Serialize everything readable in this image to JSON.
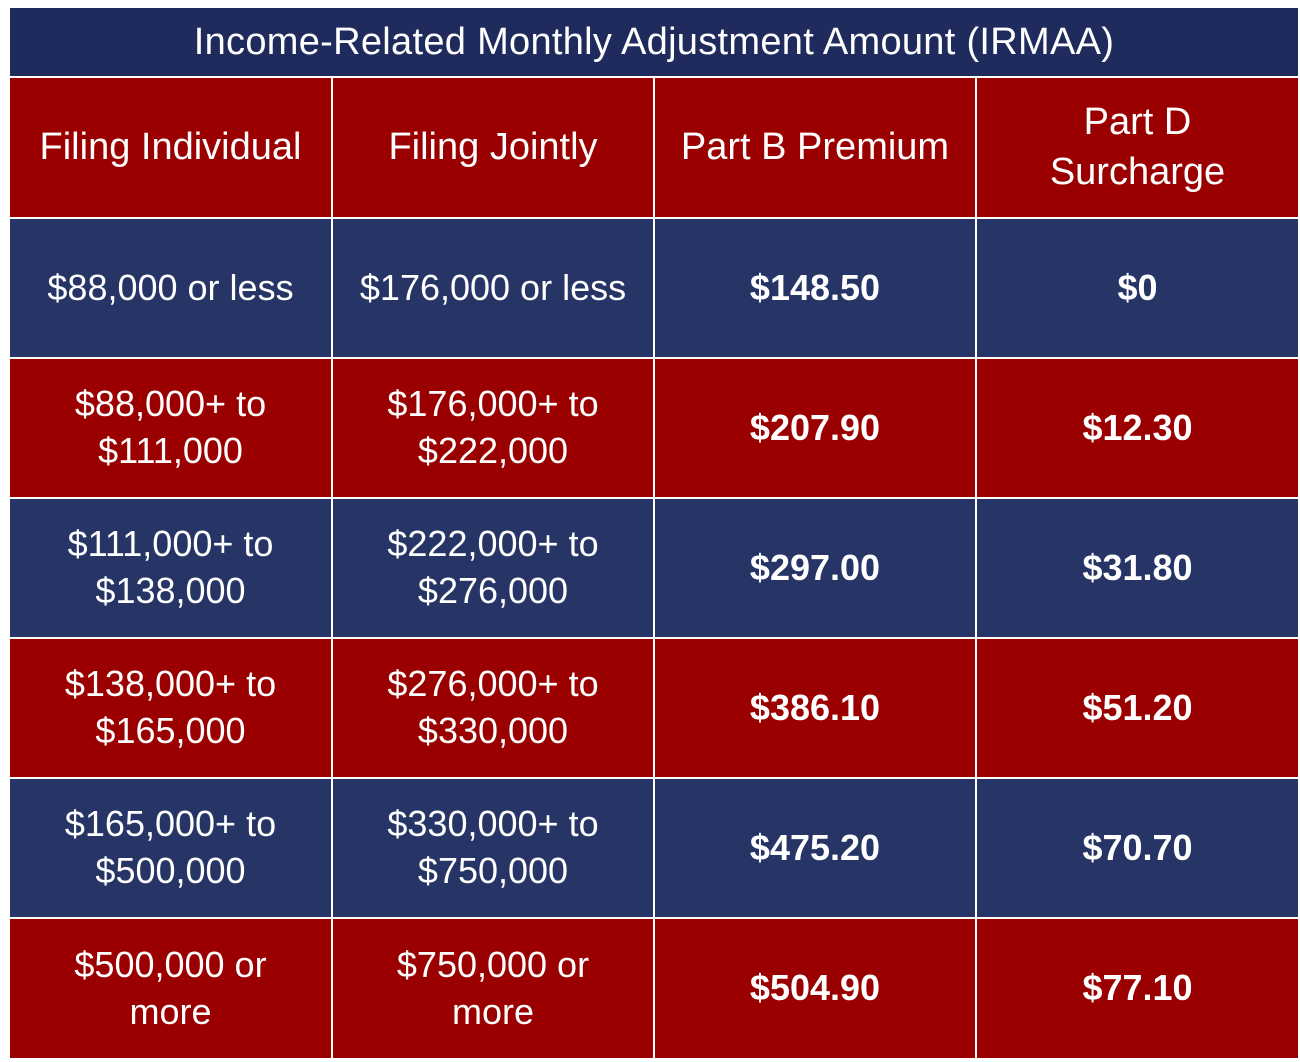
{
  "title": "Income-Related Monthly Adjustment Amount (IRMAA)",
  "headers": {
    "filing_individual": "Filing Individual",
    "filing_jointly": "Filing Jointly",
    "part_b_premium": "Part B Premium",
    "part_d_surcharge_line1": "Part D",
    "part_d_surcharge_line2": "Surcharge"
  },
  "colors": {
    "red": "#9a0000",
    "blue": "#263466",
    "title_bg": "#1f2b5c"
  },
  "rows": [
    {
      "individual_line1": "$88,000 or less",
      "individual_line2": "",
      "jointly_line1": "$176,000 or less",
      "jointly_line2": "",
      "part_b": "$148.50",
      "part_d": "$0"
    },
    {
      "individual_line1": "$88,000+ to",
      "individual_line2": "$111,000",
      "jointly_line1": "$176,000+ to",
      "jointly_line2": "$222,000",
      "part_b": "$207.90",
      "part_d": "$12.30"
    },
    {
      "individual_line1": "$111,000+ to",
      "individual_line2": "$138,000",
      "jointly_line1": "$222,000+ to",
      "jointly_line2": "$276,000",
      "part_b": "$297.00",
      "part_d": "$31.80"
    },
    {
      "individual_line1": "$138,000+ to",
      "individual_line2": "$165,000",
      "jointly_line1": "$276,000+ to",
      "jointly_line2": "$330,000",
      "part_b": "$386.10",
      "part_d": "$51.20"
    },
    {
      "individual_line1": "$165,000+ to",
      "individual_line2": "$500,000",
      "jointly_line1": "$330,000+ to",
      "jointly_line2": "$750,000",
      "part_b": "$475.20",
      "part_d": "$70.70"
    },
    {
      "individual_line1": "$500,000 or",
      "individual_line2": "more",
      "jointly_line1": "$750,000 or",
      "jointly_line2": "more",
      "part_b": "$504.90",
      "part_d": "$77.10"
    }
  ]
}
